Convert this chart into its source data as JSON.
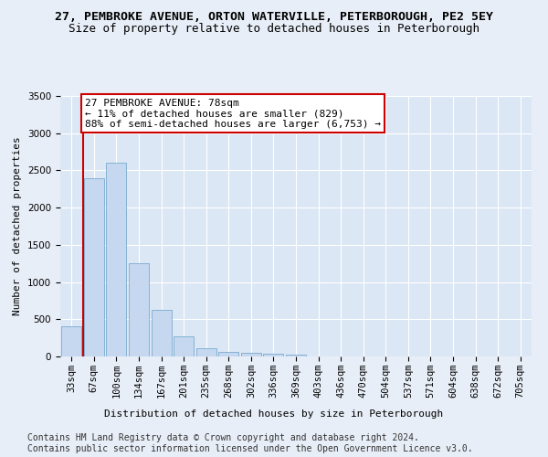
{
  "title_line1": "27, PEMBROKE AVENUE, ORTON WATERVILLE, PETERBOROUGH, PE2 5EY",
  "title_line2": "Size of property relative to detached houses in Peterborough",
  "xlabel": "Distribution of detached houses by size in Peterborough",
  "ylabel": "Number of detached properties",
  "categories": [
    "33sqm",
    "67sqm",
    "100sqm",
    "134sqm",
    "167sqm",
    "201sqm",
    "235sqm",
    "268sqm",
    "302sqm",
    "336sqm",
    "369sqm",
    "403sqm",
    "436sqm",
    "470sqm",
    "504sqm",
    "537sqm",
    "571sqm",
    "604sqm",
    "638sqm",
    "672sqm",
    "705sqm"
  ],
  "bar_values": [
    400,
    2400,
    2600,
    1250,
    630,
    270,
    115,
    65,
    55,
    40,
    30,
    0,
    0,
    0,
    0,
    0,
    0,
    0,
    0,
    0,
    0
  ],
  "bar_color": "#c5d8f0",
  "bar_edgecolor": "#7aabcf",
  "property_line_x": 0.5,
  "annotation_text": "27 PEMBROKE AVENUE: 78sqm\n← 11% of detached houses are smaller (829)\n88% of semi-detached houses are larger (6,753) →",
  "annotation_box_facecolor": "#ffffff",
  "annotation_box_edgecolor": "#cc0000",
  "property_line_color": "#cc0000",
  "ylim": [
    0,
    3500
  ],
  "yticks": [
    0,
    500,
    1000,
    1500,
    2000,
    2500,
    3000,
    3500
  ],
  "bg_color": "#e8eef7",
  "plot_bg_color": "#dce7f5",
  "footer_line1": "Contains HM Land Registry data © Crown copyright and database right 2024.",
  "footer_line2": "Contains public sector information licensed under the Open Government Licence v3.0.",
  "title_fontsize": 9.5,
  "subtitle_fontsize": 9,
  "axis_label_fontsize": 8,
  "tick_fontsize": 7.5,
  "annotation_fontsize": 8,
  "footer_fontsize": 7
}
